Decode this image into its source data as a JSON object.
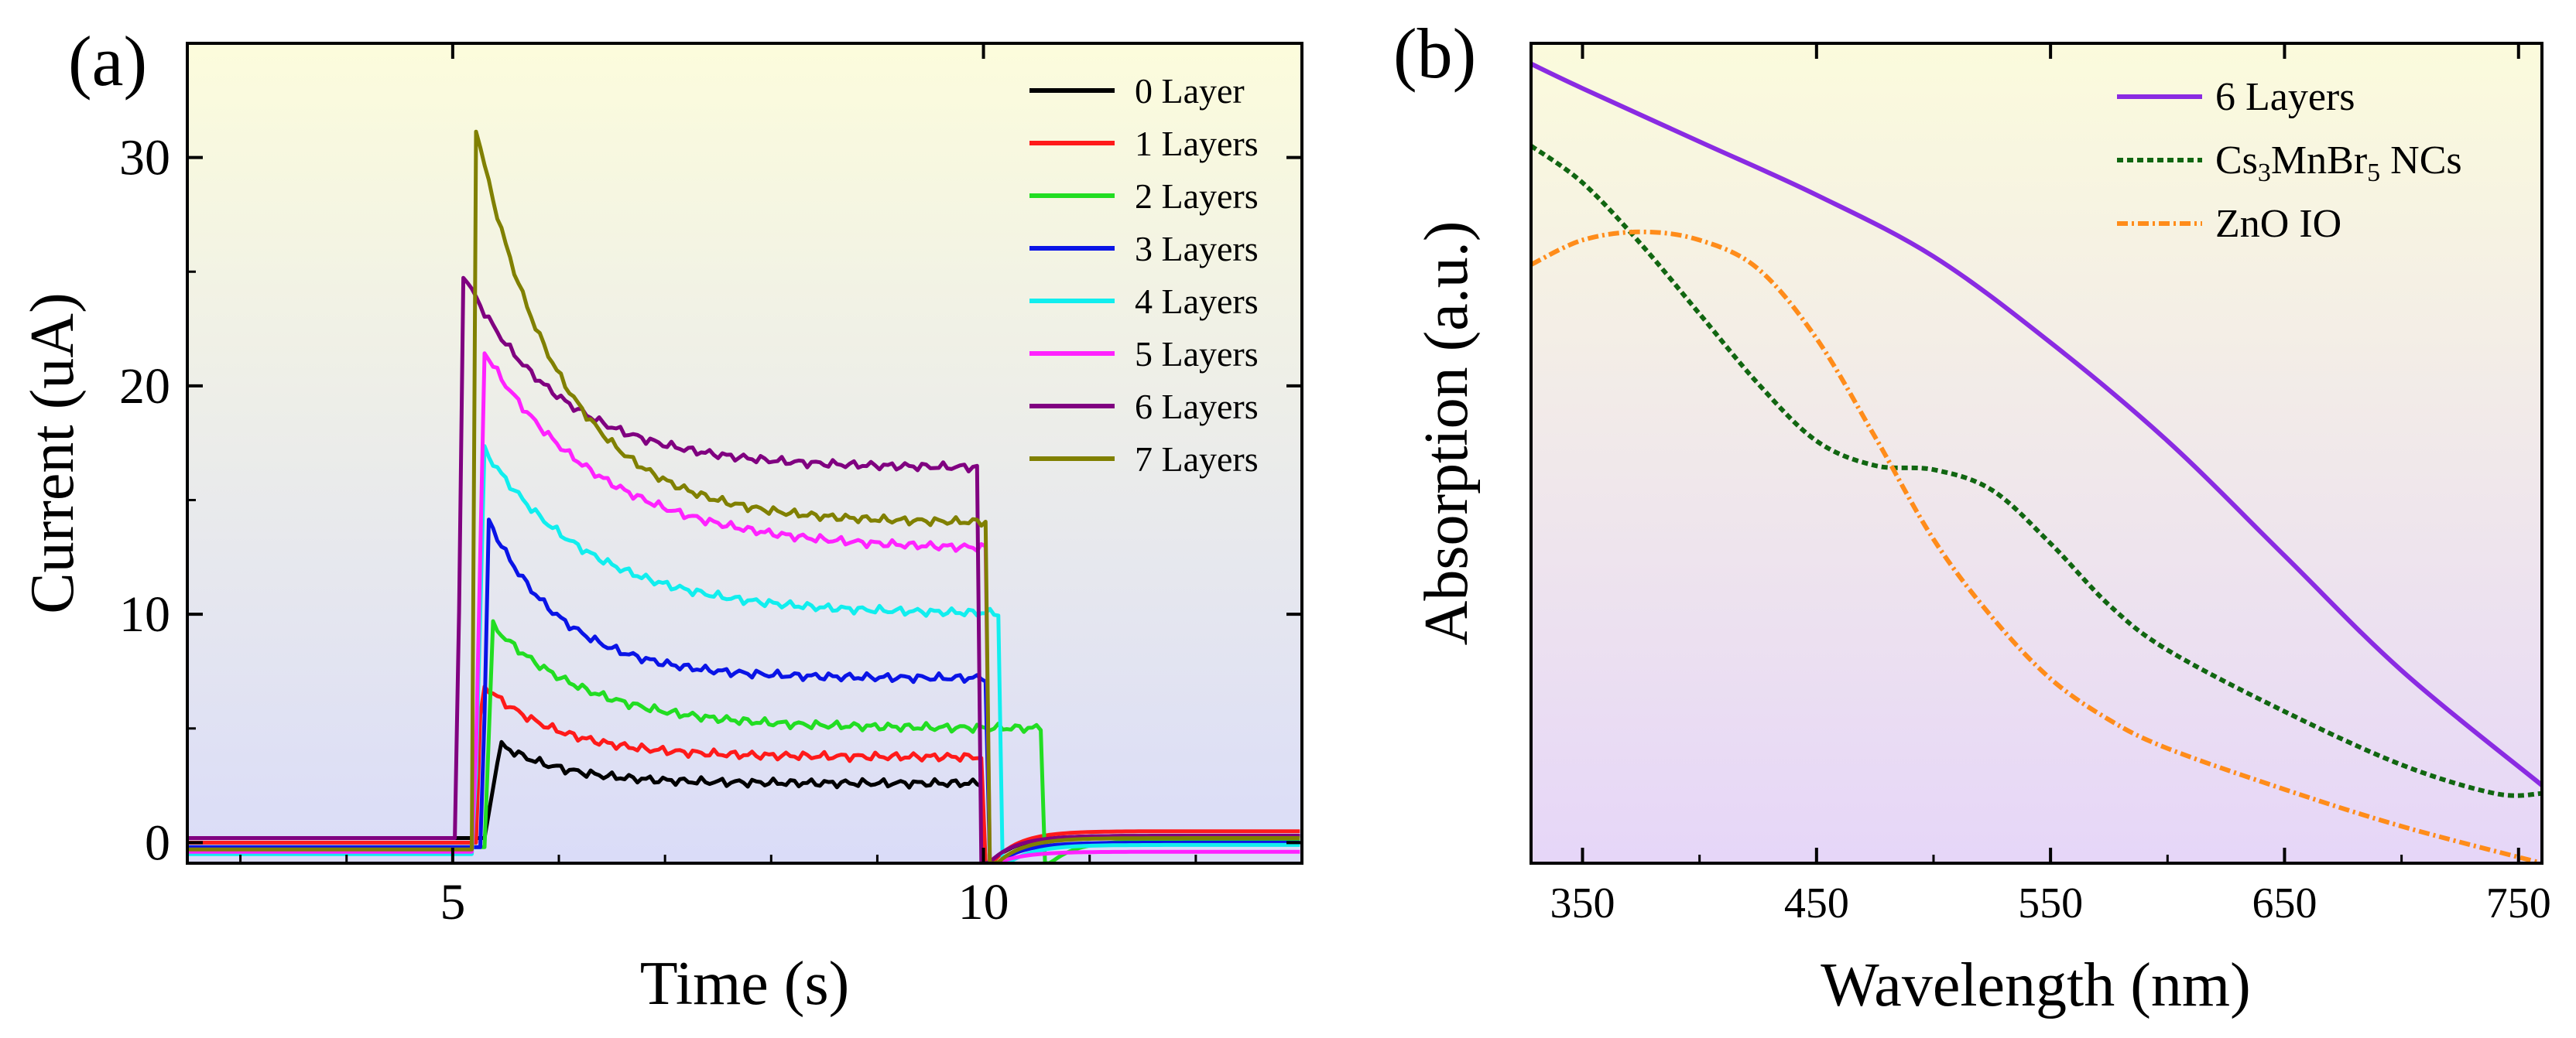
{
  "chart_data": [
    {
      "type": "line",
      "panel_label": "(a)",
      "title": "",
      "xlabel": "Time (s)",
      "ylabel": "Current (uA)",
      "xlim": [
        2.5,
        13.0
      ],
      "ylim": [
        -0.9,
        35
      ],
      "xticks": [
        5,
        10
      ],
      "xtick_labels": [
        "5",
        "10"
      ],
      "yticks": [
        0,
        10,
        20,
        30
      ],
      "ytick_labels": [
        "0",
        "10",
        "20",
        "30"
      ],
      "legend_position": "top-right",
      "background_gradient": [
        "#fcfcdc",
        "#dadcf8"
      ],
      "series": [
        {
          "name": "0 Layer",
          "color": "#000000",
          "on": 5.3,
          "off": 9.98,
          "base": 0.2,
          "peak": 4.3,
          "steady": 2.6,
          "tau": 0.6,
          "rise": 0.15,
          "after": 0.3
        },
        {
          "name": "1 Layers",
          "color": "#ff1a1a",
          "on": 5.22,
          "off": 10.0,
          "base": 0.0,
          "peak": 7.0,
          "steady": 3.75,
          "tau": 0.7,
          "rise": 0.05,
          "after": 0.5
        },
        {
          "name": "2 Layers",
          "color": "#22dd22",
          "on": 5.3,
          "off": 10.55,
          "base": -0.2,
          "peak": 9.5,
          "steady": 5.0,
          "tau": 0.9,
          "rise": 0.08,
          "after": 0.1
        },
        {
          "name": "3 Layers",
          "color": "#0a14e6",
          "on": 5.28,
          "off": 10.05,
          "base": -0.2,
          "peak": 14.2,
          "steady": 7.2,
          "tau": 0.7,
          "rise": 0.05,
          "after": 0.0
        },
        {
          "name": "4 Layers",
          "color": "#11eeee",
          "on": 5.2,
          "off": 10.15,
          "base": -0.5,
          "peak": 17.2,
          "steady": 10.0,
          "tau": 1.0,
          "rise": 0.1,
          "after": -0.1
        },
        {
          "name": "5 Layers",
          "color": "#ff22ff",
          "on": 5.2,
          "off": 10.05,
          "base": -0.4,
          "peak": 21.5,
          "steady": 12.8,
          "tau": 1.1,
          "rise": 0.1,
          "after": -0.4
        },
        {
          "name": "6 Layers",
          "color": "#800080",
          "on": 5.04,
          "off": 9.97,
          "base": 0.2,
          "peak": 25.0,
          "steady": 16.4,
          "tau": 0.9,
          "rise": 0.05,
          "after": 0.3
        },
        {
          "name": "7 Layers",
          "color": "#808000",
          "on": 5.18,
          "off": 10.05,
          "base": -0.3,
          "peak": 31.3,
          "steady": 14.0,
          "tau": 0.8,
          "rise": 0.04,
          "after": 0.2
        }
      ]
    },
    {
      "type": "line",
      "panel_label": "(b)",
      "title": "",
      "xlabel": "Wavelength (nm)",
      "ylabel": "Absorption (a.u.)",
      "xlim": [
        328,
        760
      ],
      "ylim": [
        0,
        1
      ],
      "yticks_labeled": false,
      "xticks": [
        350,
        450,
        550,
        650,
        750
      ],
      "xtick_labels": [
        "350",
        "450",
        "550",
        "650",
        "750"
      ],
      "legend_position": "top-right",
      "background_gradient": [
        "#fbfbdc",
        "#e6d6f8"
      ],
      "series": [
        {
          "name": "6 Layers",
          "color": "#8a2be2",
          "dash": "solid",
          "x": [
            328,
            350,
            400,
            450,
            500,
            550,
            600,
            650,
            700,
            760
          ],
          "y": [
            0.975,
            0.945,
            0.88,
            0.815,
            0.74,
            0.635,
            0.515,
            0.375,
            0.235,
            0.095
          ]
        },
        {
          "name": "Cs3MnBr5 NCs",
          "legend_text": "Cs",
          "legend_sub1": "3",
          "legend_mid": "MnBr",
          "legend_sub2": "5",
          "legend_tail": " NCs",
          "color": "#116611",
          "dash": "8,5",
          "x": [
            328,
            350,
            375,
            400,
            425,
            450,
            475,
            500,
            525,
            550,
            575,
            600,
            650,
            700,
            740,
            760
          ],
          "y": [
            0.875,
            0.83,
            0.755,
            0.67,
            0.585,
            0.515,
            0.485,
            0.48,
            0.455,
            0.39,
            0.315,
            0.26,
            0.185,
            0.12,
            0.085,
            0.085
          ]
        },
        {
          "name": "ZnO IO",
          "color": "#ff8c1a",
          "dash": "14,5,3,5",
          "x": [
            328,
            350,
            375,
            400,
            425,
            450,
            475,
            500,
            525,
            550,
            575,
            600,
            650,
            700,
            760
          ],
          "y": [
            0.73,
            0.76,
            0.77,
            0.76,
            0.725,
            0.64,
            0.52,
            0.395,
            0.3,
            0.225,
            0.175,
            0.14,
            0.09,
            0.045,
            0.0
          ]
        }
      ]
    }
  ]
}
